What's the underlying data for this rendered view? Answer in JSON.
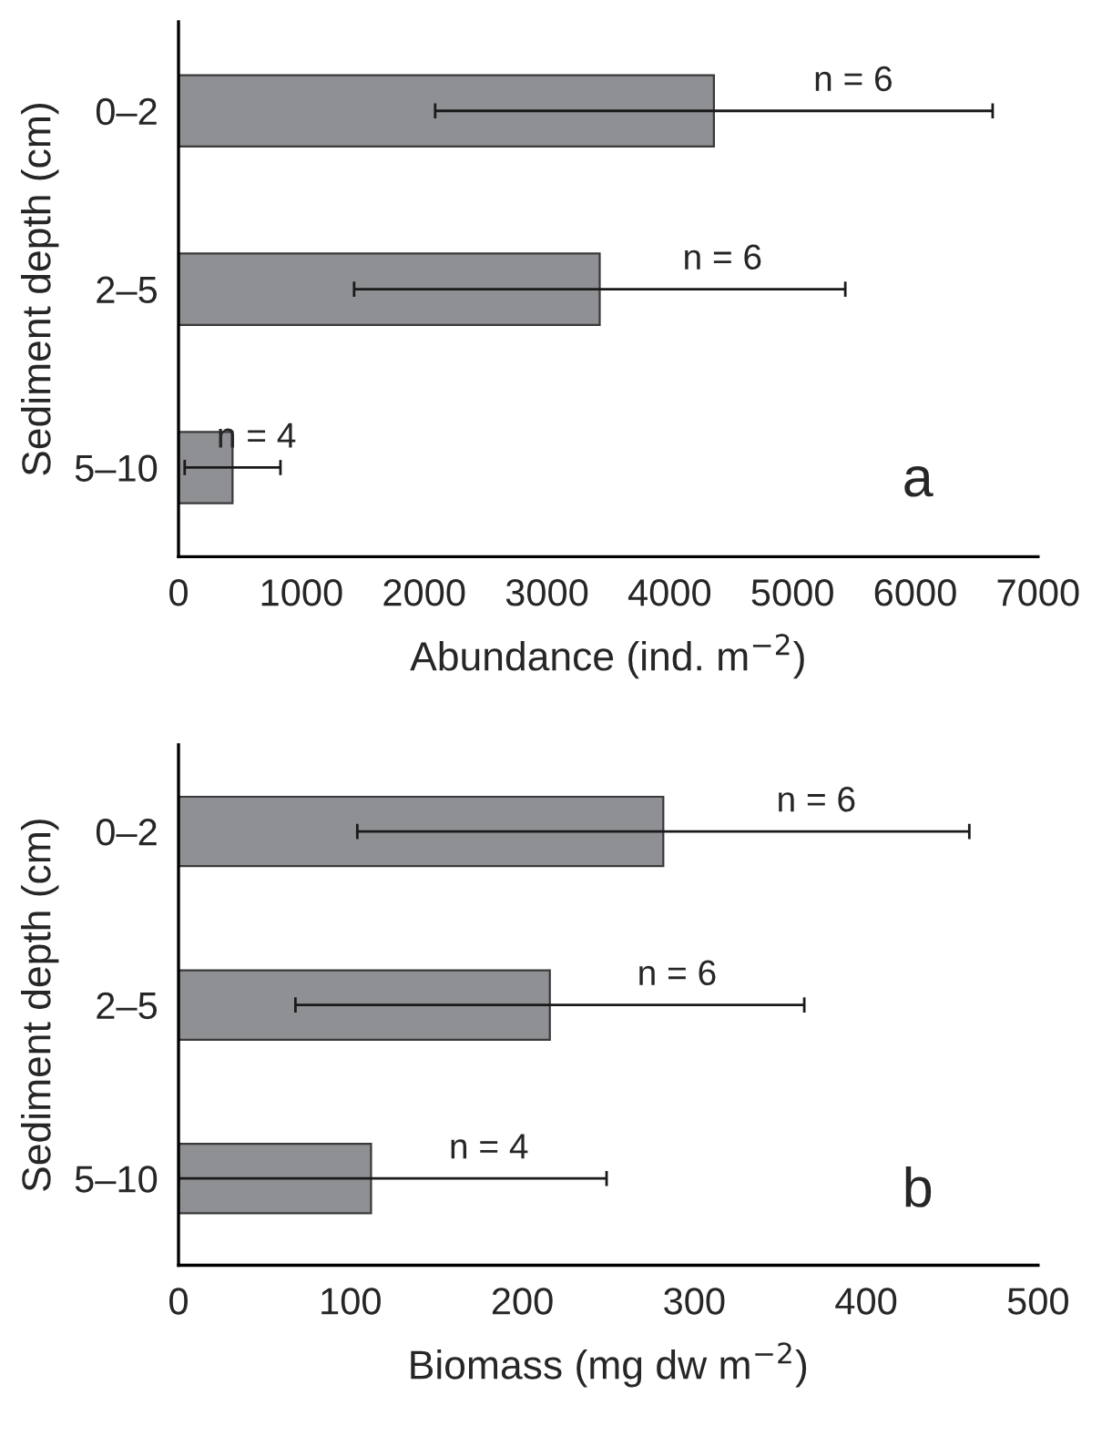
{
  "chart_data": [
    {
      "type": "bar",
      "orientation": "horizontal",
      "ylabel": "Sediment depth (cm)",
      "xlabel": "Abundance (ind. m$^{−2}$)",
      "categories": [
        "0–2",
        "2–5",
        "5–10"
      ],
      "series": [
        {
          "color": "#8f9093",
          "values": [
            4360,
            3430,
            440
          ],
          "errors": [
            2270,
            2000,
            390
          ]
        }
      ],
      "xlim": [
        0,
        7000
      ],
      "xticks": [
        0,
        1000,
        2000,
        3000,
        4000,
        5000,
        6000,
        7000
      ],
      "grid": false,
      "legend": false,
      "annotations": [
        "n = 6",
        "n = 6",
        "n = 4",
        "a"
      ]
    },
    {
      "type": "bar",
      "orientation": "horizontal",
      "ylabel": "Sediment depth (cm)",
      "xlabel": "Biomass (mg dw m$^{−2}$)",
      "categories": [
        "0–2",
        "2–5",
        "5–10"
      ],
      "series": [
        {
          "color": "#8f9093",
          "values": [
            282,
            216,
            112
          ],
          "errors": [
            178,
            148,
            [
              0,
              249
            ]
          ]
        }
      ],
      "xlim": [
        0,
        500
      ],
      "xticks": [
        0,
        100,
        200,
        300,
        400,
        500
      ],
      "grid": false,
      "legend": false,
      "annotations": [
        "n = 6",
        "n = 6",
        "n = 4",
        "b"
      ]
    }
  ]
}
